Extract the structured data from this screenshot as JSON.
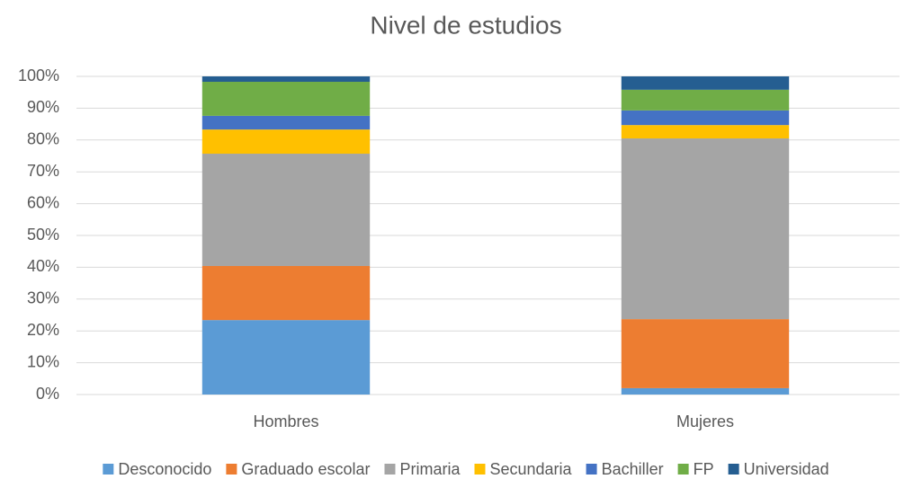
{
  "chart_data": {
    "type": "stacked_bar_100",
    "title": "Nivel de estudios",
    "categories": [
      "Hombres",
      "Mujeres"
    ],
    "series": [
      {
        "name": "Desconocido",
        "color": "#5b9bd5",
        "values": [
          23.4,
          2.0
        ]
      },
      {
        "name": "Graduado escolar",
        "color": "#ed7d31",
        "values": [
          17.0,
          21.7
        ]
      },
      {
        "name": "Primaria",
        "color": "#a5a5a5",
        "values": [
          35.3,
          56.8
        ]
      },
      {
        "name": "Secundaria",
        "color": "#ffc000",
        "values": [
          7.6,
          4.2
        ]
      },
      {
        "name": "Bachiller",
        "color": "#4472c4",
        "values": [
          4.3,
          4.6
        ]
      },
      {
        "name": "FP",
        "color": "#70ad47",
        "values": [
          10.7,
          6.5
        ]
      },
      {
        "name": "Universidad",
        "color": "#255e91",
        "values": [
          1.7,
          4.2
        ]
      }
    ],
    "ylim": [
      0,
      100
    ],
    "yticks": [
      {
        "value": 0,
        "label": "0%"
      },
      {
        "value": 10,
        "label": "10%"
      },
      {
        "value": 20,
        "label": "20%"
      },
      {
        "value": 30,
        "label": "30%"
      },
      {
        "value": 40,
        "label": "40%"
      },
      {
        "value": 50,
        "label": "50%"
      },
      {
        "value": 60,
        "label": "60%"
      },
      {
        "value": 70,
        "label": "70%"
      },
      {
        "value": 80,
        "label": "80%"
      },
      {
        "value": 90,
        "label": "90%"
      },
      {
        "value": 100,
        "label": "100%"
      }
    ],
    "grid": true,
    "legend": "bottom"
  }
}
